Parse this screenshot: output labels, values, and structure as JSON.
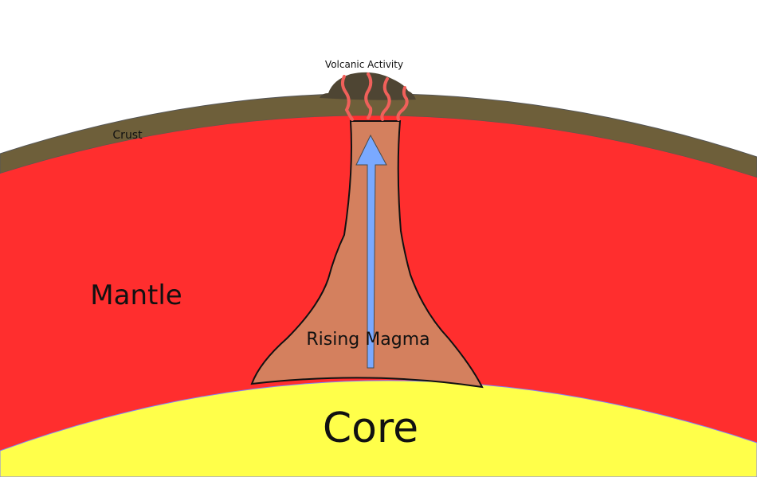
{
  "labels": {
    "volcanic_activity": "Volcanic Activity",
    "crust": "Crust",
    "mantle": "Mantle",
    "rising_magma": "Rising Magma",
    "core": "Core"
  },
  "colors": {
    "background": "#ffffff",
    "crust": "#6e5f3a",
    "mantle": "#ff2e2e",
    "core": "#ffff4a",
    "magma_plume": "#d4805e",
    "volcano": "#4e4533",
    "lava_streaks": "#f0605a",
    "arrow": "#7aa9ff"
  },
  "icons": {
    "arrow": "upward-arrow",
    "volcano": "volcano-mound"
  }
}
